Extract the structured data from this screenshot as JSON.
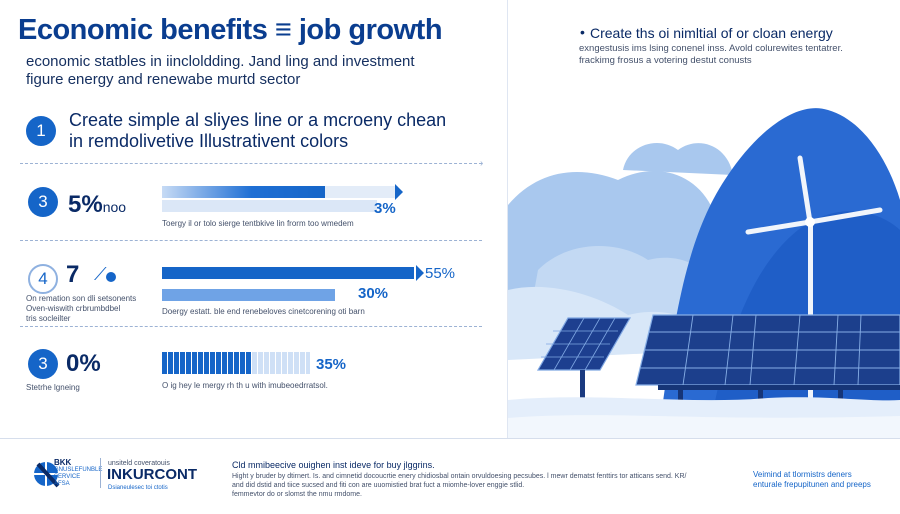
{
  "header": {
    "title": "Economic benefits ≡ job growth",
    "subtitle_line1": "economic statbles in iincloldding. Jand ling and investment",
    "subtitle_line2": "figure energy and renewabe murtd sector"
  },
  "intro": {
    "number": "1",
    "line1": "Create   simple al sliyes line or a mcroeny chean",
    "line2": "in remdolivetive Illustrativent colors"
  },
  "rows": [
    {
      "number": "3",
      "stat": "5%",
      "stat_suffix": "noo",
      "bar_label": "3%",
      "bar_value": 0.69,
      "caption": "Toergy il or tolo sierge tentbkive lin frorm too wmedem"
    },
    {
      "number": "4",
      "stat": "7",
      "side_caption_line1": "On remation son dli setsonents",
      "side_caption_line2": "Oven-wiswith crbrumbdbel",
      "side_caption_line3": "tris socleilter",
      "bar1_label": "55%",
      "bar1_value": 0.85,
      "bar2_label": "30%",
      "bar2_value": 0.55,
      "caption": "Doergy estatt. ble end renebeloves cinetcorening oti barn"
    },
    {
      "number": "3",
      "stat": "0%",
      "side_caption": "Stetrhe lgneing",
      "bar_label": "35%",
      "bar_value": 0.6,
      "caption": "O ig hey le mergy rh th u with imubeoedrratsol."
    }
  ],
  "right_panel": {
    "bullet": "•",
    "heading": "Create ths oi nimltial of or cloan energy",
    "line2": "exngestusis ims lsing conenel inss.  Avold colurewites tentatrer.",
    "line3": "frackimg frosus a votering destut conusts"
  },
  "footer": {
    "logo_top": "BKK",
    "logo_sub1": "GNUSLEFUNBLE",
    "logo_sub2": "SERVICE",
    "logo_sub3": "AFSA",
    "brand_top": "unsiteld coveratouis",
    "brand_main": "INKURCONT",
    "brand_sub": "Dsianeulesec toi ctotis",
    "note_title": "Cld mmibeecive ouighen inst ideve for buy jlggrins.",
    "note_line1": "Hight y bruder by dtirnert. Is. and cimnetid docoucrtie enery chidiosbal ontain orvuldoesing pecsubes. l mewr dematst fenttirs tor atticans send. KR/",
    "note_line2": "and did dstid and tiice sucsed and fiti con are uuomistied brat fuct a miomhe-lover enggie stlid.",
    "note_line3": "femmevtor do or slomst the nmu rmdome.",
    "right_line1": "Veimind at tlormistrs deners",
    "right_line2": "enturale frepupitunen and preeps"
  },
  "colors": {
    "primary": "#1565c8",
    "dark": "#0a2a66",
    "light_blue": "#9cc3ef",
    "hill": "#2f6fd6",
    "panel": "#1c3f8c"
  }
}
